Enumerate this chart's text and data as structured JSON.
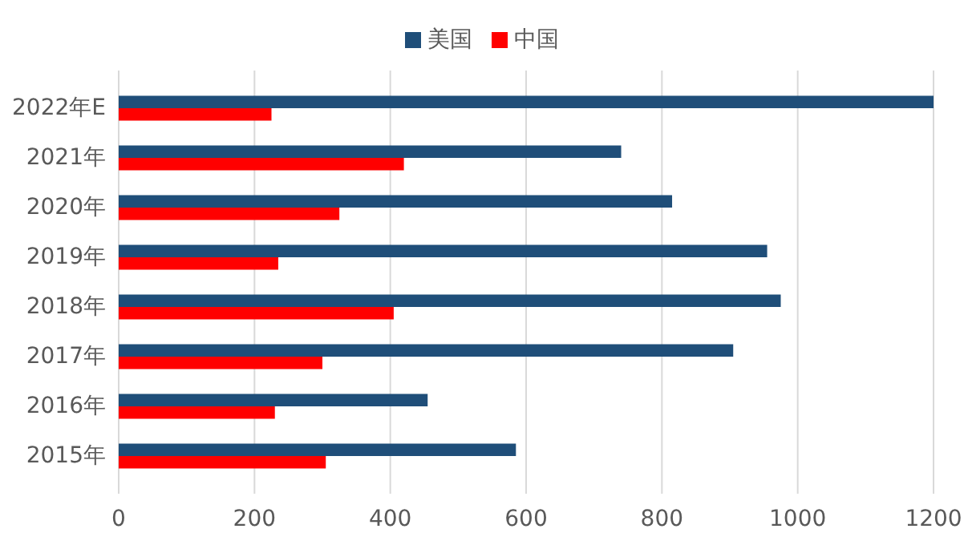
{
  "chart_data": {
    "type": "bar",
    "orientation": "horizontal",
    "categories": [
      "2022年E",
      "2021年",
      "2020年",
      "2019年",
      "2018年",
      "2017年",
      "2016年",
      "2015年"
    ],
    "series": [
      {
        "name": "美国",
        "color": "#1f4e79",
        "values": [
          1200,
          740,
          815,
          955,
          975,
          905,
          455,
          585
        ]
      },
      {
        "name": "中国",
        "color": "#ff0000",
        "values": [
          225,
          420,
          325,
          235,
          405,
          300,
          230,
          305
        ]
      }
    ],
    "xlim": [
      0,
      1200
    ],
    "xticks": [
      0,
      200,
      400,
      600,
      800,
      1000,
      1200
    ],
    "grid": "x",
    "legend": "top"
  }
}
